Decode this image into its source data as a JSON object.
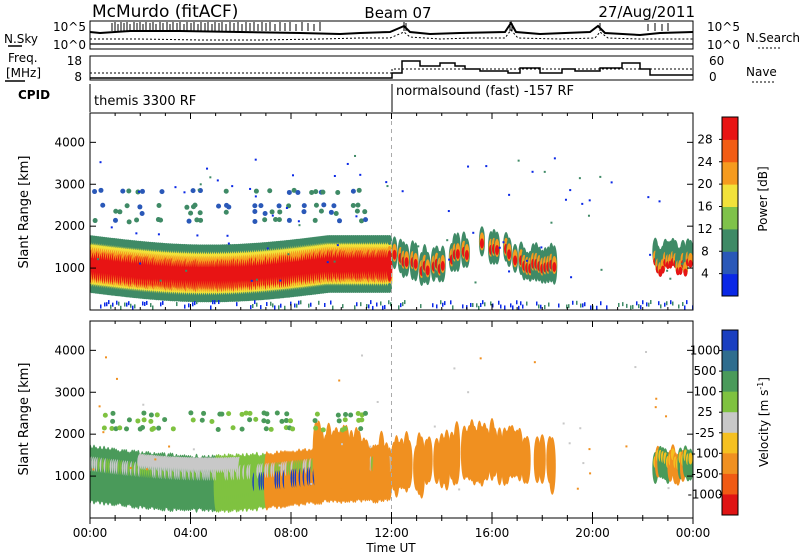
{
  "header": {
    "title": "McMurdo (fitACF)",
    "beam": "Beam 07",
    "date": "27/Aug/2011"
  },
  "noise_panel": {
    "left_label": "N.Sky",
    "right_label": "N.Search",
    "left_ticks": [
      "10^5",
      "10^0"
    ],
    "right_ticks": [
      "10^5",
      "10^0"
    ]
  },
  "freq_panel": {
    "left_label_1": "Freq.",
    "left_label_2": "[MHz]",
    "left_ticks": [
      "18",
      "8"
    ],
    "right_label": "Nave",
    "right_ticks": [
      "60",
      "0"
    ]
  },
  "cpid": {
    "label": "CPID",
    "modes": [
      {
        "text": "themis 3300 RF",
        "start": "00:00"
      },
      {
        "text": "normalsound (fast) -157 RF",
        "start": "12:00"
      }
    ]
  },
  "chart_data": [
    {
      "type": "heatmap",
      "ylabel": "Slant Range [km]",
      "yticks": [
        1000,
        2000,
        3000,
        4000
      ],
      "colorbar": {
        "label": "Power [dB]",
        "ticks": [
          "4",
          "8",
          "12",
          "16",
          "20",
          "24",
          "28"
        ],
        "colors": [
          "#0a28e6",
          "#2a58b8",
          "#3f8a66",
          "#7fc24a",
          "#f2e23a",
          "#f59b1f",
          "#f25c14",
          "#e81414"
        ]
      }
    },
    {
      "type": "heatmap",
      "ylabel": "Velocity [m s^-1]",
      "axis_ylabel": "Slant Range [km]",
      "yticks": [
        1000,
        2000,
        3000,
        4000
      ],
      "colorbar": {
        "label": "Velocity [m s",
        "label_sup": "-1",
        "label_end": "]",
        "ticks": [
          "1000",
          "500",
          "100",
          "25",
          "-25",
          "-100",
          "-500",
          "-1000"
        ],
        "colors": [
          "#1a3fc0",
          "#2f6d8e",
          "#4a9a5a",
          "#7fc240",
          "#c8c8c8",
          "#f5c020",
          "#f09020",
          "#f05a14",
          "#e01414"
        ]
      }
    }
  ],
  "x_axis": {
    "ticks": [
      "00:00",
      "04:00",
      "08:00",
      "12:00",
      "16:00",
      "20:00",
      "00:00"
    ],
    "label": "Time UT"
  }
}
